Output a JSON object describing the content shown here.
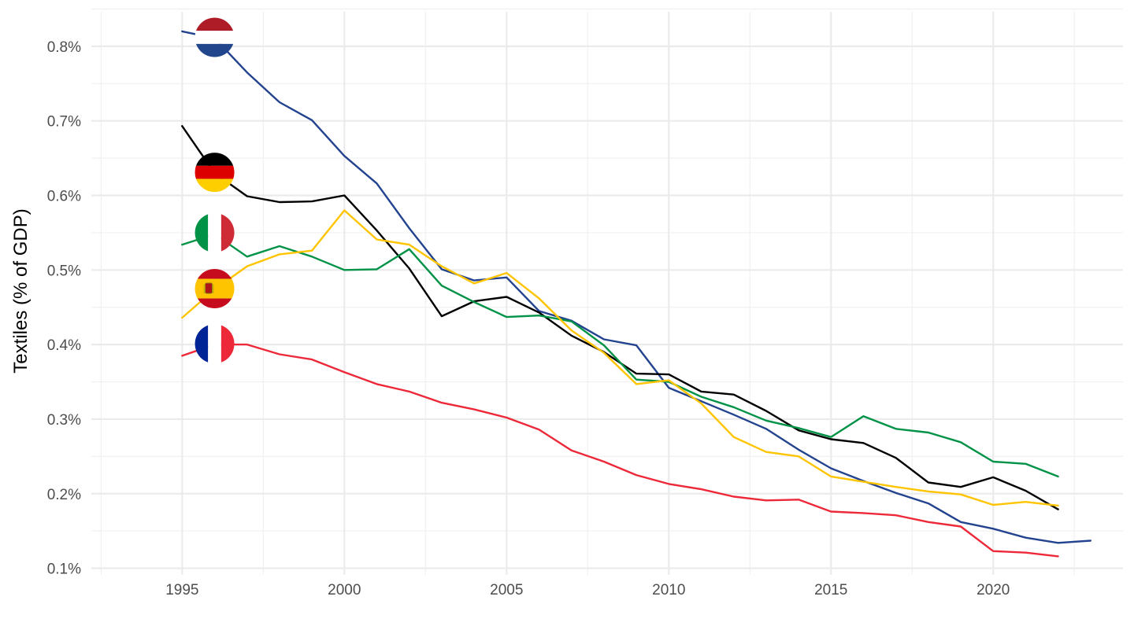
{
  "chart_data": {
    "type": "line",
    "title": "",
    "xlabel": "",
    "ylabel": "Textiles (% of GDP)",
    "xlim": [
      1992.2,
      2024.0
    ],
    "ylim": [
      0.0911,
      0.8463
    ],
    "x_ticks": [
      1995,
      2000,
      2005,
      2010,
      2015,
      2020
    ],
    "x_tick_labels": [
      "1995",
      "2000",
      "2005",
      "2010",
      "2015",
      "2020"
    ],
    "y_ticks": [
      0.1,
      0.2,
      0.3,
      0.4,
      0.5,
      0.6,
      0.7,
      0.8
    ],
    "y_tick_labels": [
      "0.1%",
      "0.2%",
      "0.3%",
      "0.4%",
      "0.5%",
      "0.6%",
      "0.7%",
      "0.8%"
    ],
    "grid": true,
    "legend": "flags at start of series",
    "series": [
      {
        "country": "Netherlands",
        "color": "#23438F",
        "flag_icon": "netherlands-flag-icon",
        "x": [
          1995,
          1996,
          1997,
          1998,
          1999,
          2000,
          2001,
          2002,
          2003,
          2004,
          2005,
          2006,
          2007,
          2008,
          2009,
          2010,
          2011,
          2012,
          2013,
          2014,
          2015,
          2016,
          2017,
          2018,
          2019,
          2020,
          2021,
          2022,
          2023
        ],
        "values": [
          0.82,
          0.811,
          0.765,
          0.725,
          0.701,
          0.653,
          0.616,
          0.556,
          0.501,
          0.486,
          0.49,
          0.445,
          0.432,
          0.407,
          0.399,
          0.342,
          0.324,
          0.306,
          0.287,
          0.259,
          0.234,
          0.217,
          0.201,
          0.187,
          0.162,
          0.153,
          0.141,
          0.134,
          0.137
        ],
        "flag_value": 0.812
      },
      {
        "country": "Germany",
        "color": "#000000",
        "flag_icon": "germany-flag-icon",
        "x": [
          1995,
          1996,
          1997,
          1998,
          1999,
          2000,
          2001,
          2002,
          2003,
          2004,
          2005,
          2006,
          2007,
          2008,
          2009,
          2010,
          2011,
          2012,
          2013,
          2014,
          2015,
          2016,
          2017,
          2018,
          2019,
          2020,
          2021,
          2022
        ],
        "values": [
          0.693,
          0.63,
          0.599,
          0.591,
          0.592,
          0.6,
          0.553,
          0.502,
          0.438,
          0.458,
          0.464,
          0.443,
          0.412,
          0.39,
          0.361,
          0.36,
          0.337,
          0.333,
          0.311,
          0.285,
          0.273,
          0.268,
          0.248,
          0.215,
          0.209,
          0.222,
          0.204,
          0.179
        ],
        "flag_value": 0.631
      },
      {
        "country": "Italy",
        "color": "#009246",
        "flag_icon": "italy-flag-icon",
        "x": [
          1995,
          1996,
          1997,
          1998,
          1999,
          2000,
          2001,
          2002,
          2003,
          2004,
          2005,
          2006,
          2007,
          2008,
          2009,
          2010,
          2011,
          2012,
          2013,
          2014,
          2015,
          2016,
          2017,
          2018,
          2019,
          2020,
          2021,
          2022
        ],
        "values": [
          0.534,
          0.548,
          0.518,
          0.532,
          0.518,
          0.5,
          0.501,
          0.528,
          0.479,
          0.457,
          0.437,
          0.439,
          0.431,
          0.399,
          0.353,
          0.35,
          0.33,
          0.316,
          0.298,
          0.288,
          0.276,
          0.304,
          0.287,
          0.282,
          0.269,
          0.243,
          0.24,
          0.223
        ],
        "flag_value": 0.55
      },
      {
        "country": "Spain",
        "color": "#FFC400",
        "flag_icon": "spain-flag-icon",
        "x": [
          1995,
          1996,
          1997,
          1998,
          1999,
          2000,
          2001,
          2002,
          2003,
          2004,
          2005,
          2006,
          2007,
          2008,
          2009,
          2010,
          2011,
          2012,
          2013,
          2014,
          2015,
          2016,
          2017,
          2018,
          2019,
          2020,
          2021,
          2022
        ],
        "values": [
          0.436,
          0.474,
          0.505,
          0.521,
          0.526,
          0.58,
          0.541,
          0.534,
          0.505,
          0.482,
          0.496,
          0.462,
          0.419,
          0.389,
          0.347,
          0.352,
          0.321,
          0.276,
          0.256,
          0.25,
          0.223,
          0.216,
          0.209,
          0.203,
          0.199,
          0.185,
          0.189,
          0.184
        ],
        "flag_value": 0.475
      },
      {
        "country": "France",
        "color": "#ED2939",
        "flag_icon": "france-flag-icon",
        "x": [
          1995,
          1996,
          1997,
          1998,
          1999,
          2000,
          2001,
          2002,
          2003,
          2004,
          2005,
          2006,
          2007,
          2008,
          2009,
          2010,
          2011,
          2012,
          2013,
          2014,
          2015,
          2016,
          2017,
          2018,
          2019,
          2020,
          2021,
          2022
        ],
        "values": [
          0.385,
          0.4,
          0.4,
          0.387,
          0.38,
          0.363,
          0.347,
          0.337,
          0.322,
          0.313,
          0.302,
          0.286,
          0.258,
          0.243,
          0.225,
          0.213,
          0.206,
          0.196,
          0.191,
          0.192,
          0.176,
          0.174,
          0.171,
          0.162,
          0.156,
          0.123,
          0.121,
          0.116
        ],
        "flag_value": 0.401
      }
    ]
  }
}
